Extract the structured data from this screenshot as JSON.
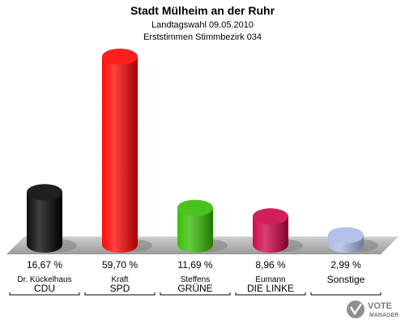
{
  "chart_data": {
    "type": "bar",
    "title": "Stadt Mülheim an der Ruhr",
    "subtitle_1": "Landtagswahl 09.05.2010",
    "subtitle_2": "Erststimmen Stimmbezirk 034",
    "categories": [
      {
        "candidate": "Dr. Kückelhaus",
        "party": "CDU"
      },
      {
        "candidate": "Kraft",
        "party": "SPD"
      },
      {
        "candidate": "Steffens",
        "party": "GRÜNE"
      },
      {
        "candidate": "Eumann",
        "party": "DIE LINKE"
      },
      {
        "candidate": "",
        "party": "Sonstige"
      }
    ],
    "values": [
      16.67,
      59.7,
      11.69,
      8.96,
      2.99
    ],
    "value_labels": [
      "16,67 %",
      "59,70 %",
      "11,69 %",
      "8,96 %",
      "2,99 %"
    ],
    "colors": [
      "#000000",
      "#ff0000",
      "#33bb00",
      "#cc0044",
      "#aab8e6"
    ],
    "ylim": [
      0,
      59.7
    ]
  },
  "branding": {
    "logo_text_1": "VOTE",
    "logo_text_2": "MANAGER"
  }
}
